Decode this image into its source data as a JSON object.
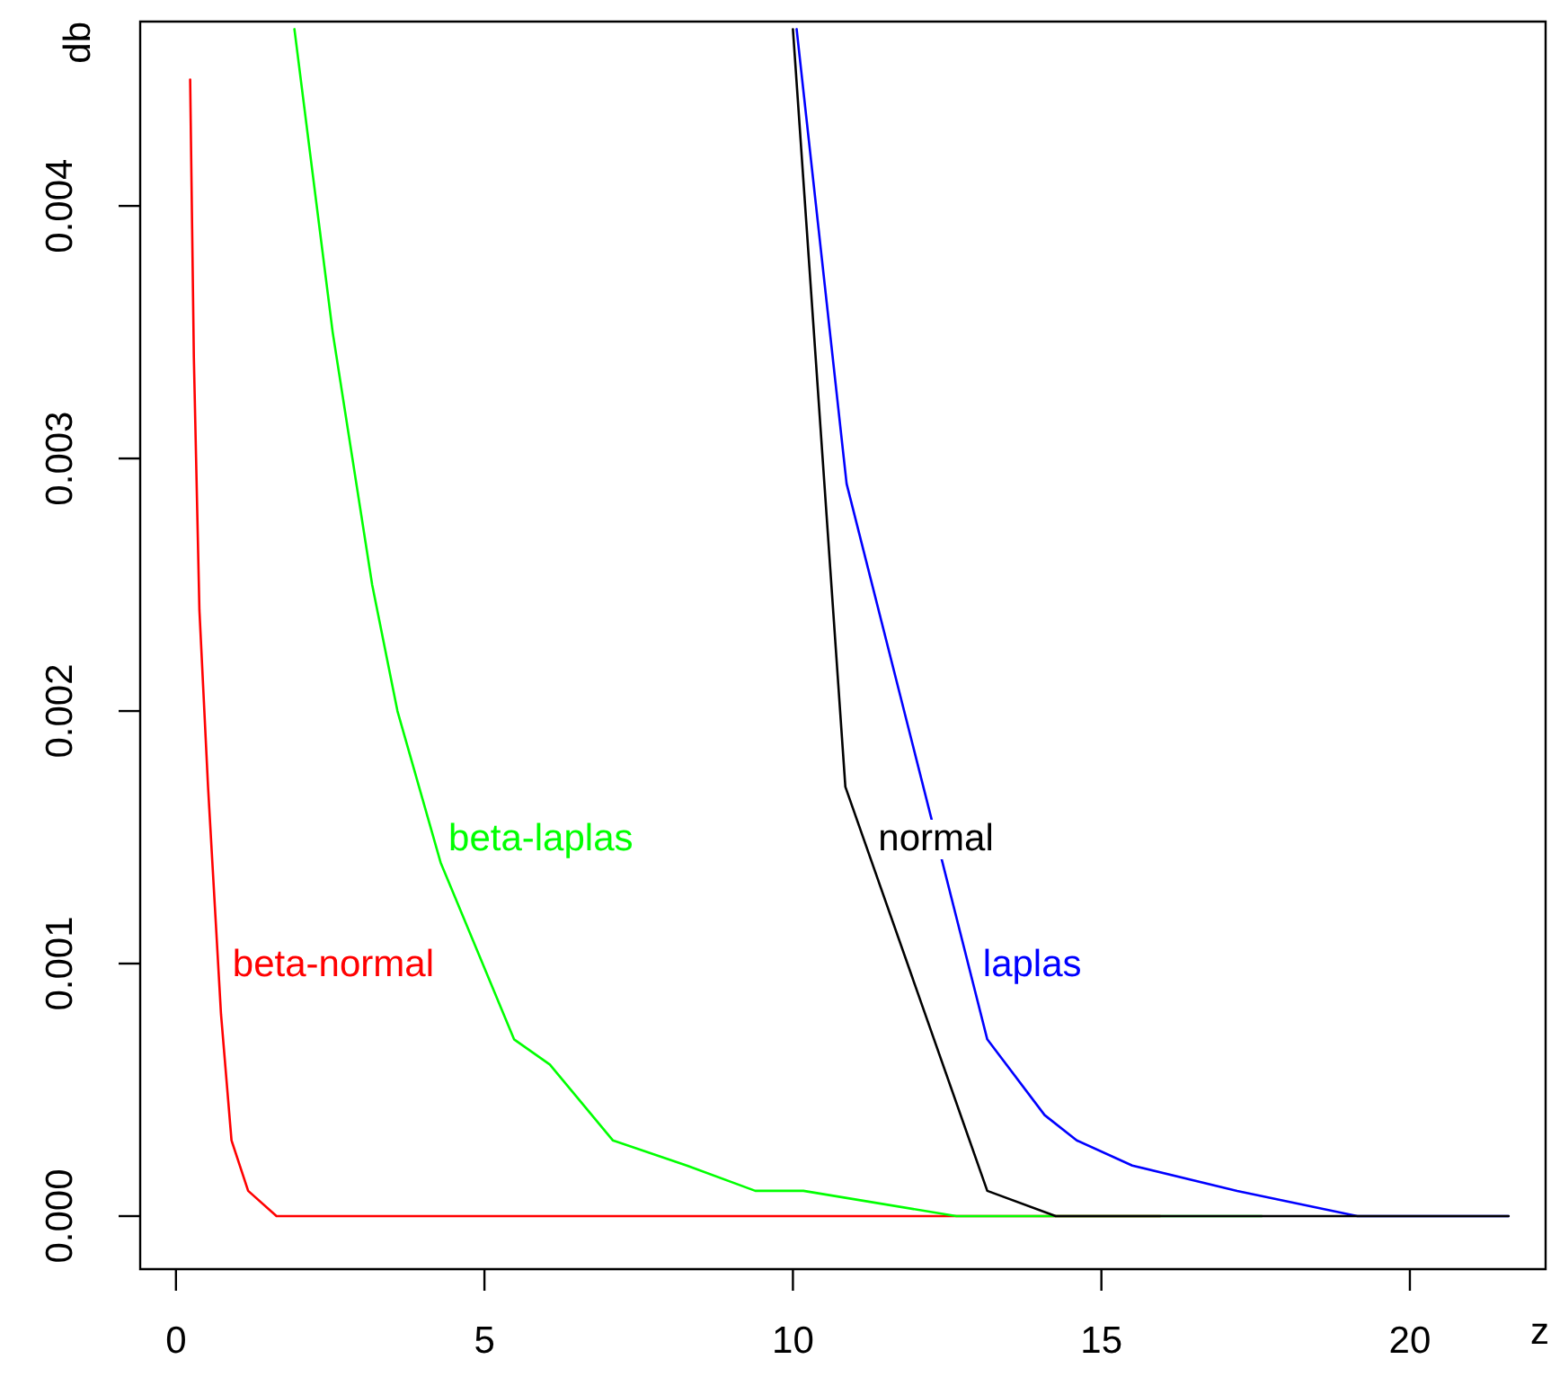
{
  "chart_data": {
    "type": "line",
    "xlabel": "z",
    "ylabel": "db",
    "xlim": [
      -0.58,
      22.2
    ],
    "ylim": [
      -0.00021,
      0.00473
    ],
    "xticks": [
      0,
      5,
      10,
      15,
      20
    ],
    "yticks": [
      {
        "value": 0,
        "label": "0.000"
      },
      {
        "value": 0.001,
        "label": "0.001"
      },
      {
        "value": 0.002,
        "label": "0.002"
      },
      {
        "value": 0.003,
        "label": "0.003"
      },
      {
        "value": 0.004,
        "label": "0.004"
      }
    ],
    "grid": false,
    "legend": false,
    "marker": "none",
    "line_style": "solid",
    "series": [
      {
        "name": "normal",
        "color": "#000000",
        "x": [
          10.0,
          10.85,
          13.15,
          14.26,
          21.6
        ],
        "values": [
          0.0047,
          0.0017,
          0.0001,
          0,
          0
        ]
      },
      {
        "name": "laplas",
        "color": "#0000ff",
        "x": [
          10.06,
          10.87,
          13.15,
          14.08,
          14.6,
          15.5,
          17.2,
          19.15,
          21.6
        ],
        "values": [
          0.0047,
          0.0029,
          0.0007,
          0.0004,
          0.0003,
          0.0002,
          0.0001,
          0,
          0
        ]
      },
      {
        "name": "beta-laplas",
        "color": "#00ff00",
        "x": [
          1.92,
          2.54,
          3.18,
          3.59,
          4.29,
          5.48,
          6.06,
          7.08,
          8.28,
          9.39,
          10.17,
          12.65,
          17.6
        ],
        "values": [
          0.0047,
          0.0035,
          0.0025,
          0.002,
          0.0014,
          0.0007,
          0.0006,
          0.0003,
          0.0002,
          0.0001,
          0.0001,
          0,
          0
        ]
      },
      {
        "name": "beta-normal",
        "color": "#ff0000",
        "x": [
          0.23,
          0.29,
          0.38,
          0.52,
          0.73,
          0.9,
          1.17,
          1.63,
          1.95,
          15.95
        ],
        "values": [
          0.0045,
          0.0034,
          0.0024,
          0.0017,
          0.0008,
          0.0003,
          0.0001,
          0,
          0,
          0
        ]
      }
    ]
  }
}
